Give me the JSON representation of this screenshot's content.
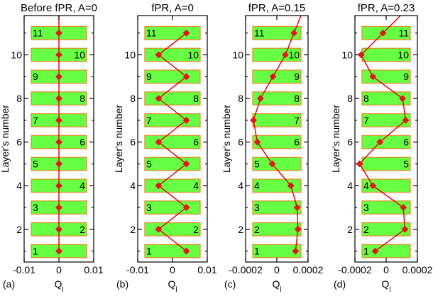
{
  "chart_data": [
    {
      "type": "line",
      "panel_tag": "(a)",
      "title": "Before fPR,  A=0",
      "xlabel": "Q",
      "xlabel_sub": "l",
      "ylabel": "Layer's number",
      "xlim": [
        -0.01,
        0.01
      ],
      "xticks": [
        -0.01,
        0,
        0.01
      ],
      "xtick_labels": [
        "-0.01",
        "0",
        "0.01"
      ],
      "ylim": [
        0.5,
        11.8
      ],
      "yticks": [
        2,
        4,
        6,
        8,
        10
      ],
      "ytick_labels": [
        "2",
        "4",
        "6",
        "8",
        "10"
      ],
      "layers": [
        {
          "n": 1,
          "label": "1",
          "side": "left"
        },
        {
          "n": 2,
          "label": "2",
          "side": "right"
        },
        {
          "n": 3,
          "label": "3",
          "side": "left"
        },
        {
          "n": 4,
          "label": "4",
          "side": "right"
        },
        {
          "n": 5,
          "label": "5",
          "side": "left"
        },
        {
          "n": 6,
          "label": "6",
          "side": "right"
        },
        {
          "n": 7,
          "label": "7",
          "side": "left"
        },
        {
          "n": 8,
          "label": "8",
          "side": "right"
        },
        {
          "n": 9,
          "label": "9",
          "side": "left"
        },
        {
          "n": 10,
          "label": "10",
          "side": "right"
        },
        {
          "n": 11,
          "label": "11",
          "side": "left"
        }
      ],
      "points": [
        {
          "x": 0,
          "y": 1
        },
        {
          "x": 0,
          "y": 2
        },
        {
          "x": 0,
          "y": 3
        },
        {
          "x": 0,
          "y": 4
        },
        {
          "x": 0,
          "y": 5
        },
        {
          "x": 0,
          "y": 6
        },
        {
          "x": 0,
          "y": 7
        },
        {
          "x": 0,
          "y": 8
        },
        {
          "x": 0,
          "y": 9
        },
        {
          "x": 0,
          "y": 10
        },
        {
          "x": 0,
          "y": 11
        }
      ],
      "line_extends_to_top": true
    },
    {
      "type": "line",
      "panel_tag": "(b)",
      "title": "fPR,   A=0",
      "xlabel": "Q",
      "xlabel_sub": "l",
      "ylabel": "Layer's number",
      "xlim": [
        -0.01,
        0.01
      ],
      "xticks": [
        -0.01,
        0,
        0.01
      ],
      "xtick_labels": [
        "-0.01",
        "0",
        "0.01"
      ],
      "ylim": [
        0.5,
        11.8
      ],
      "yticks": [
        2,
        4,
        6,
        8,
        10
      ],
      "ytick_labels": [
        "2",
        "4",
        "6",
        "8",
        "10"
      ],
      "layers": [
        {
          "n": 1,
          "label": "1",
          "side": "left"
        },
        {
          "n": 2,
          "label": "2",
          "side": "right"
        },
        {
          "n": 3,
          "label": "3",
          "side": "left"
        },
        {
          "n": 4,
          "label": "4",
          "side": "right"
        },
        {
          "n": 5,
          "label": "5",
          "side": "left"
        },
        {
          "n": 6,
          "label": "6",
          "side": "right"
        },
        {
          "n": 7,
          "label": "7",
          "side": "left"
        },
        {
          "n": 8,
          "label": "8",
          "side": "right"
        },
        {
          "n": 9,
          "label": "9",
          "side": "left"
        },
        {
          "n": 10,
          "label": "10",
          "side": "right"
        },
        {
          "n": 11,
          "label": "11",
          "side": "left"
        }
      ],
      "points": [
        {
          "x": 0.004,
          "y": 1
        },
        {
          "x": -0.004,
          "y": 2
        },
        {
          "x": 0.004,
          "y": 3
        },
        {
          "x": -0.004,
          "y": 4
        },
        {
          "x": 0.004,
          "y": 5
        },
        {
          "x": -0.004,
          "y": 6
        },
        {
          "x": 0.004,
          "y": 7
        },
        {
          "x": -0.004,
          "y": 8
        },
        {
          "x": 0.004,
          "y": 9
        },
        {
          "x": -0.004,
          "y": 10
        },
        {
          "x": 0.004,
          "y": 11
        }
      ],
      "line_extends_to_top": false
    },
    {
      "type": "line",
      "panel_tag": "(c)",
      "title": "fPR,   A=0.15",
      "xlabel": "Q",
      "xlabel_sub": "l",
      "ylabel": "Layer's number",
      "xlim": [
        -0.0002,
        0.0002
      ],
      "xticks": [
        -0.0002,
        0,
        0.0002
      ],
      "xtick_labels": [
        "-0.0002",
        "0",
        "0.0002"
      ],
      "ylim": [
        0.5,
        11.8
      ],
      "yticks": [
        2,
        4,
        6,
        8,
        10
      ],
      "ytick_labels": [
        "2",
        "4",
        "6",
        "8",
        "10"
      ],
      "layers": [
        {
          "n": 1,
          "label": "1",
          "side": "left"
        },
        {
          "n": 2,
          "label": "2",
          "side": "left"
        },
        {
          "n": 3,
          "label": "3",
          "side": "left"
        },
        {
          "n": 4,
          "label": "4",
          "side": "left"
        },
        {
          "n": 5,
          "label": "5",
          "side": "left"
        },
        {
          "n": 6,
          "label": "6",
          "side": "right"
        },
        {
          "n": 7,
          "label": "7",
          "side": "right"
        },
        {
          "n": 8,
          "label": "8",
          "side": "right"
        },
        {
          "n": 9,
          "label": "9",
          "side": "right"
        },
        {
          "n": 10,
          "label": "10",
          "side": "right"
        },
        {
          "n": 11,
          "label": "11",
          "side": "left"
        }
      ],
      "points": [
        {
          "x": 0.00012,
          "y": 1
        },
        {
          "x": 0.000135,
          "y": 2
        },
        {
          "x": 0.00013,
          "y": 3
        },
        {
          "x": 9e-05,
          "y": 4
        },
        {
          "x": -3e-05,
          "y": 5
        },
        {
          "x": -0.000125,
          "y": 6
        },
        {
          "x": -0.00015,
          "y": 7
        },
        {
          "x": -0.000105,
          "y": 8
        },
        {
          "x": -2.5e-05,
          "y": 9
        },
        {
          "x": 5.5e-05,
          "y": 10
        },
        {
          "x": 0.00011,
          "y": 11
        }
      ],
      "line_extends_to_top": true
    },
    {
      "type": "line",
      "panel_tag": "(d)",
      "title": "fPR,   A=0.23",
      "xlabel": "Q",
      "xlabel_sub": "l",
      "ylabel": "Layer's number",
      "xlim": [
        -0.0002,
        0.0002
      ],
      "xticks": [
        -0.0002,
        0,
        0.0002
      ],
      "xtick_labels": [
        "-0.0002",
        "0",
        "0.0002"
      ],
      "ylim": [
        0.5,
        11.8
      ],
      "yticks": [
        2,
        4,
        6,
        8,
        10
      ],
      "ytick_labels": [
        "2",
        "4",
        "6",
        "8",
        "10"
      ],
      "layers": [
        {
          "n": 1,
          "label": "1",
          "side": "left"
        },
        {
          "n": 2,
          "label": "2",
          "side": "left"
        },
        {
          "n": 3,
          "label": "3",
          "side": "left"
        },
        {
          "n": 4,
          "label": "4",
          "side": "left"
        },
        {
          "n": 5,
          "label": "5",
          "side": "right"
        },
        {
          "n": 6,
          "label": "6",
          "side": "right"
        },
        {
          "n": 7,
          "label": "7",
          "side": "left"
        },
        {
          "n": 8,
          "label": "8",
          "side": "left"
        },
        {
          "n": 9,
          "label": "9",
          "side": "right"
        },
        {
          "n": 10,
          "label": "10",
          "side": "right"
        },
        {
          "n": 11,
          "label": "11",
          "side": "right"
        }
      ],
      "points": [
        {
          "x": -7e-05,
          "y": 1
        },
        {
          "x": 0.00012,
          "y": 2
        },
        {
          "x": 0.00011,
          "y": 3
        },
        {
          "x": -8.5e-05,
          "y": 4
        },
        {
          "x": -0.00017,
          "y": 5
        },
        {
          "x": -4e-05,
          "y": 6
        },
        {
          "x": 0.000125,
          "y": 7
        },
        {
          "x": 0.000105,
          "y": 8
        },
        {
          "x": -8.5e-05,
          "y": 9
        },
        {
          "x": -0.00016,
          "y": 10
        },
        {
          "x": -2e-05,
          "y": 11
        }
      ],
      "line_extends_to_top": true
    }
  ]
}
